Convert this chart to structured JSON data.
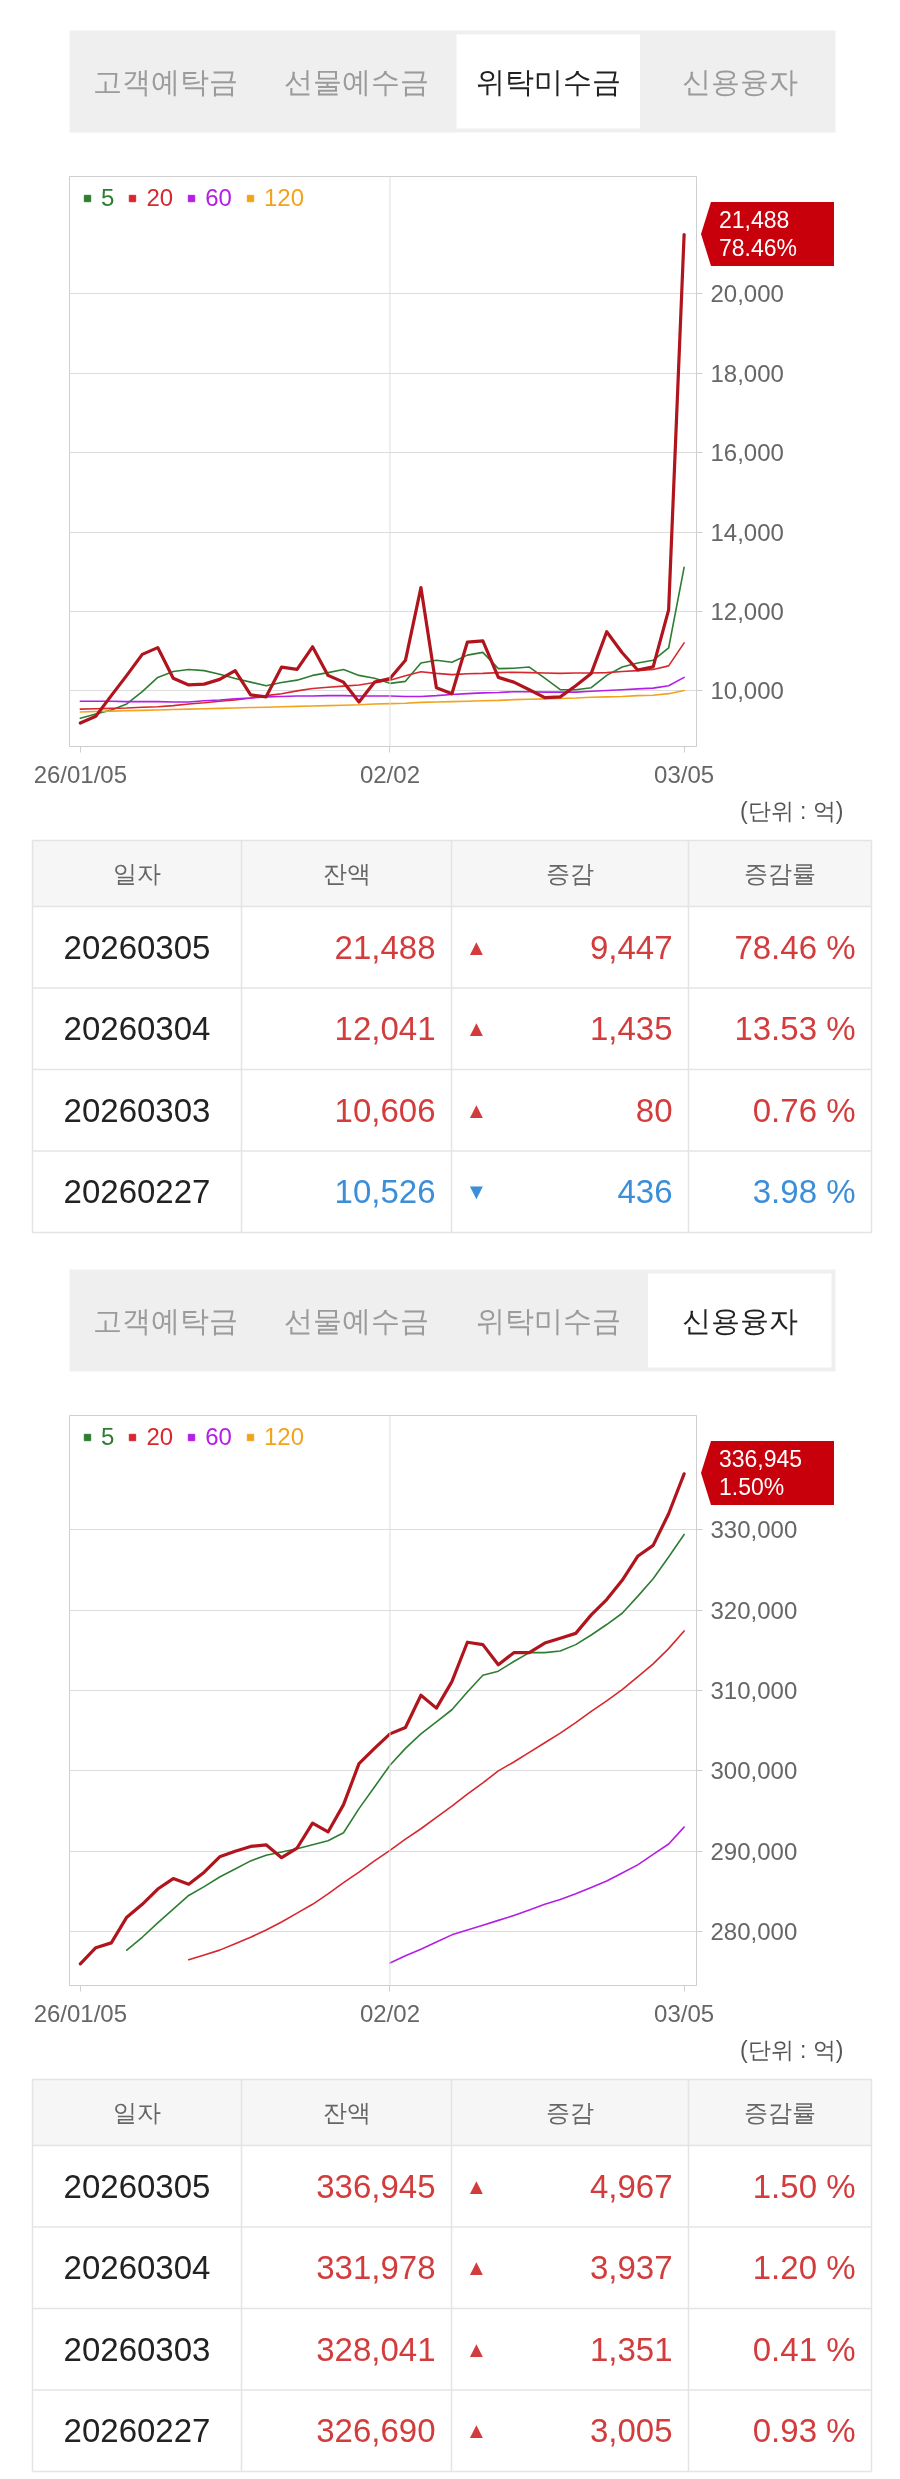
{
  "chart_data": [
    {
      "type": "other",
      "categories": [
        "고객예탁금",
        "선물예수금",
        "위탁미수금",
        "신용융자"
      ],
      "colors": [
        "#efefef",
        "#efefef",
        "#ffffff",
        "#efefef"
      ]
    },
    {
      "type": "line",
      "categories": [
        "26/01/05",
        null,
        null,
        null,
        null,
        null,
        null,
        null,
        null,
        null,
        null,
        null,
        null,
        null,
        null,
        null,
        null,
        null,
        null,
        null,
        "02/02",
        null,
        null,
        null,
        null,
        null,
        null,
        null,
        null,
        null,
        null,
        null,
        null,
        null,
        null,
        null,
        null,
        null,
        null,
        "03/05"
      ],
      "ylim": [
        8600,
        22950
      ],
      "yticks": [
        {
          "value": 10000,
          "label": "10,000"
        },
        {
          "value": 12000,
          "label": "12,000"
        },
        {
          "value": 14000,
          "label": "14,000"
        },
        {
          "value": 16000,
          "label": "16,000"
        },
        {
          "value": 18000,
          "label": "18,000"
        },
        {
          "value": 20000,
          "label": "20,000"
        }
      ],
      "grid": "y",
      "legend": "top left",
      "ref_lines": [
        {
          "axis": "x",
          "value": "02/02",
          "color": "#dddddd"
        }
      ],
      "series": [
        {
          "name": "5",
          "color": "#2e7d32",
          "values": [
            9310,
            9420,
            9520,
            9670,
            9980,
            10340,
            10490,
            10540,
            10510,
            10420,
            10310,
            10220,
            10130,
            10210,
            10270,
            10390,
            10460,
            10540,
            10390,
            10320,
            10190,
            10240,
            10700,
            10770,
            10720,
            10900,
            10970,
            10560,
            10570,
            10600,
            10320,
            10030,
            10030,
            10080,
            10390,
            10600,
            10700,
            10770,
            11080,
            13110
          ]
        },
        {
          "name": "20",
          "color": "#d6282e",
          "values": [
            9540,
            9550,
            9560,
            9570,
            9590,
            9600,
            9630,
            9670,
            9700,
            9740,
            9770,
            9820,
            9880,
            9930,
            10000,
            10060,
            10090,
            10120,
            10150,
            10210,
            10270,
            10380,
            10480,
            10440,
            10410,
            10430,
            10440,
            10460,
            10470,
            10460,
            10450,
            10440,
            10450,
            10450,
            10460,
            10490,
            10510,
            10540,
            10630,
            11210
          ]
        },
        {
          "name": "60",
          "color": "#b41ee6",
          "values": [
            9740,
            9740,
            9740,
            9730,
            9730,
            9730,
            9720,
            9720,
            9750,
            9770,
            9800,
            9820,
            9850,
            9860,
            9870,
            9870,
            9880,
            9880,
            9870,
            9870,
            9870,
            9860,
            9860,
            9880,
            9910,
            9930,
            9950,
            9960,
            9980,
            9980,
            9970,
            9970,
            9970,
            9990,
            10010,
            10030,
            10050,
            10070,
            10130,
            10340
          ]
        },
        {
          "name": "120",
          "color": "#f2a31c",
          "values": [
            9470,
            9480,
            9490,
            9500,
            9510,
            9520,
            9530,
            9540,
            9550,
            9560,
            9570,
            9580,
            9590,
            9600,
            9610,
            9620,
            9630,
            9640,
            9650,
            9670,
            9680,
            9690,
            9710,
            9720,
            9730,
            9740,
            9750,
            9760,
            9780,
            9790,
            9800,
            9810,
            9820,
            9840,
            9850,
            9860,
            9880,
            9890,
            9930,
            10010
          ]
        },
        {
          "color": "#b0141c",
          "values": [
            9190,
            9360,
            9880,
            10390,
            10920,
            11090,
            10320,
            10150,
            10170,
            10290,
            10510,
            9900,
            9850,
            10600,
            10540,
            11110,
            10390,
            10220,
            9720,
            10220,
            10310,
            10770,
            12600,
            10080,
            9930,
            11230,
            11260,
            10340,
            10220,
            10030,
            9830,
            9850,
            10130,
            10440,
            11490,
            10960,
            10526,
            10606,
            12041,
            21488
          ]
        }
      ],
      "annotations": [
        {
          "text": "21,488",
          "x": "03/05",
          "y": 21488
        },
        {
          "text": "78.46%",
          "x": "03/05",
          "y": 21488
        },
        "(단위 : 억)"
      ]
    },
    {
      "type": "other",
      "categories": [
        "일자",
        "잔액",
        "증감",
        "증감률"
      ],
      "y_categories": [
        "20260305",
        "20260304",
        "20260303",
        "20260227"
      ],
      "cell_labels": [
        [
          "21,488",
          "▲ 9,447",
          "78.46 %"
        ],
        [
          "12,041",
          "▲ 1,435",
          "13.53 %"
        ],
        [
          "10,606",
          "▲ 80",
          "0.76 %"
        ],
        [
          "10,526",
          "▼ 436",
          "3.98 %"
        ]
      ]
    },
    {
      "type": "other",
      "categories": [
        "고객예탁금",
        "선물예수금",
        "위탁미수금",
        "신용융자"
      ],
      "colors": [
        "#efefef",
        "#efefef",
        "#efefef",
        "#ffffff"
      ]
    },
    {
      "type": "line",
      "categories": [
        "26/01/05",
        null,
        null,
        null,
        null,
        null,
        null,
        null,
        null,
        null,
        null,
        null,
        null,
        null,
        null,
        null,
        null,
        null,
        null,
        null,
        "02/02",
        null,
        null,
        null,
        null,
        null,
        null,
        null,
        null,
        null,
        null,
        null,
        null,
        null,
        null,
        null,
        null,
        null,
        null,
        "03/05"
      ],
      "ylim": [
        273300,
        344200
      ],
      "yticks": [
        {
          "value": 280000,
          "label": "280,000"
        },
        {
          "value": 290000,
          "label": "290,000"
        },
        {
          "value": 300000,
          "label": "300,000"
        },
        {
          "value": 310000,
          "label": "310,000"
        },
        {
          "value": 320000,
          "label": "320,000"
        },
        {
          "value": 330000,
          "label": "330,000"
        }
      ],
      "grid": "y",
      "legend": "top left",
      "ref_lines": [
        {
          "axis": "x",
          "value": "02/02",
          "color": "#dddddd"
        }
      ],
      "series": [
        {
          "name": "5",
          "color": "#2e7d32",
          "values": [
            null,
            null,
            null,
            277700,
            279300,
            281100,
            282800,
            284500,
            285600,
            286800,
            287800,
            288800,
            289500,
            289900,
            290300,
            290800,
            291300,
            292300,
            295300,
            298000,
            300700,
            302800,
            304600,
            306100,
            307600,
            309800,
            311900,
            312400,
            313600,
            314700,
            314700,
            314900,
            315700,
            316900,
            318200,
            319600,
            321700,
            323900,
            326600,
            329400
          ]
        },
        {
          "name": "20",
          "color": "#d6282e",
          "values": [
            null,
            null,
            null,
            null,
            null,
            null,
            null,
            276500,
            277100,
            277700,
            278500,
            279300,
            280200,
            281200,
            282300,
            283400,
            284700,
            286100,
            287400,
            288800,
            290100,
            291500,
            292800,
            294200,
            295600,
            297100,
            298500,
            300000,
            301100,
            302300,
            303500,
            304700,
            306000,
            307400,
            308700,
            310100,
            311700,
            313300,
            315200,
            317400
          ]
        },
        {
          "name": "60",
          "color": "#b41ee6",
          "values": [
            null,
            null,
            null,
            null,
            null,
            null,
            null,
            null,
            null,
            null,
            null,
            null,
            null,
            null,
            null,
            null,
            null,
            null,
            null,
            null,
            276100,
            277000,
            277800,
            278700,
            279600,
            280200,
            280800,
            281400,
            282000,
            282700,
            283400,
            284000,
            284700,
            285500,
            286300,
            287300,
            288300,
            289600,
            290900,
            293000
          ]
        },
        {
          "name": "120",
          "color": "#f2a31c",
          "values": [
            null,
            null,
            null,
            null,
            null,
            null,
            null,
            null,
            null,
            null,
            null,
            null,
            null,
            null,
            null,
            null,
            null,
            null,
            null,
            null,
            null,
            null,
            null,
            null,
            null,
            null,
            null,
            null,
            null,
            null,
            null,
            null,
            null,
            null,
            null,
            null,
            null,
            null,
            null,
            null
          ]
        },
        {
          "color": "#b0141c",
          "values": [
            276000,
            278000,
            278600,
            281800,
            283400,
            285300,
            286600,
            285900,
            287400,
            289300,
            290000,
            290600,
            290800,
            289200,
            290400,
            293500,
            292400,
            295800,
            300900,
            302800,
            304600,
            305400,
            309400,
            307800,
            311100,
            316000,
            315700,
            313200,
            314700,
            314700,
            315900,
            316500,
            317100,
            319400,
            321300,
            323700,
            326690,
            328041,
            331978,
            336945
          ]
        }
      ],
      "annotations": [
        {
          "text": "336,945",
          "x": "03/05",
          "y": 336945
        },
        {
          "text": "1.50%",
          "x": "03/05",
          "y": 336945
        },
        "(단위 : 억)"
      ]
    },
    {
      "type": "other",
      "categories": [
        "일자",
        "잔액",
        "증감",
        "증감률"
      ],
      "y_categories": [
        "20260305",
        "20260304",
        "20260303",
        "20260227"
      ],
      "cell_labels": [
        [
          "336,945",
          "▲ 4,967",
          "1.50 %"
        ],
        [
          "331,978",
          "▲ 3,937",
          "1.20 %"
        ],
        [
          "328,041",
          "▲ 1,351",
          "0.41 %"
        ],
        [
          "326,690",
          "▲ 3,005",
          "0.93 %"
        ]
      ]
    }
  ]
}
